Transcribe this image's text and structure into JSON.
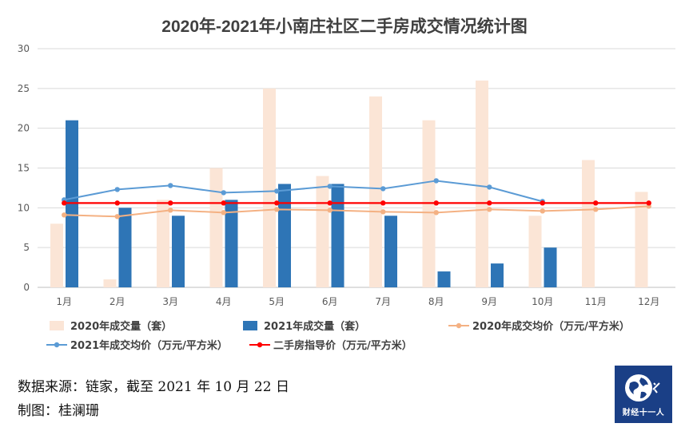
{
  "chart_data": {
    "type": "bar",
    "title": "2020年-2021年小南庄社区二手房成交情况统计图",
    "categories": [
      "1月",
      "2月",
      "3月",
      "4月",
      "5月",
      "6月",
      "7月",
      "8月",
      "9月",
      "10月",
      "11月",
      "12月"
    ],
    "ylim": [
      0,
      30
    ],
    "yticks": [
      0,
      5,
      10,
      15,
      20,
      25,
      30
    ],
    "grid": true,
    "legend_position": "bottom",
    "series": [
      {
        "name": "2020年成交量（套）",
        "kind": "bar",
        "color": "#fbe5d6",
        "values": [
          8,
          1,
          11,
          15,
          25,
          14,
          24,
          21,
          26,
          9,
          16,
          12
        ]
      },
      {
        "name": "2021年成交量（套）",
        "kind": "bar",
        "color": "#2e75b6",
        "values": [
          21,
          10,
          9,
          11,
          13,
          13,
          9,
          2,
          3,
          5,
          null,
          null
        ]
      },
      {
        "name": "2020年成交均价（万元/平方米）",
        "kind": "line",
        "color": "#f4b183",
        "values": [
          9.1,
          8.9,
          9.7,
          9.4,
          9.8,
          9.7,
          9.5,
          9.4,
          9.8,
          9.6,
          9.8,
          10.2
        ]
      },
      {
        "name": "2021年成交均价（万元/平方米）",
        "kind": "line",
        "color": "#5b9bd5",
        "values": [
          11.0,
          12.3,
          12.8,
          11.9,
          12.1,
          12.7,
          12.4,
          13.4,
          12.6,
          10.8,
          null,
          null
        ]
      },
      {
        "name": "二手房指导价（万元/平方米）",
        "kind": "line",
        "color": "#ff0000",
        "values": [
          10.6,
          10.6,
          10.6,
          10.6,
          10.6,
          10.6,
          10.6,
          10.6,
          10.6,
          10.6,
          10.6,
          10.6
        ]
      }
    ]
  },
  "footer": {
    "source": "数据来源：链家，截至 2021 年 10 月 22 日",
    "author": "制图：桂澜珊"
  },
  "logo": {
    "text": "财经十一人",
    "color": "#1a3f86"
  }
}
